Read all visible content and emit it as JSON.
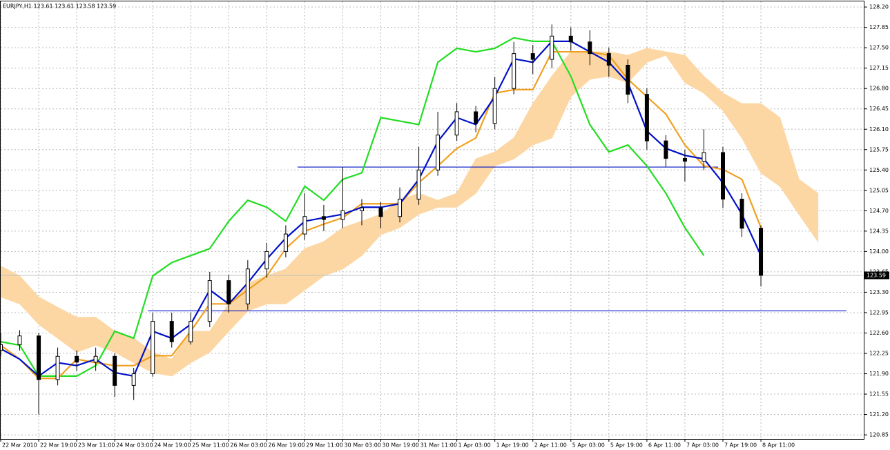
{
  "chart_data": {
    "type": "candlestick",
    "title": "EURJPY,H1  123.61 123.61 123.58 123.59",
    "x": [
      0,
      8,
      16,
      24,
      32,
      40,
      48,
      56,
      64,
      72,
      80,
      88,
      96,
      104,
      112,
      120,
      128,
      136,
      144,
      152,
      160,
      168,
      176,
      184,
      192,
      200,
      208,
      216,
      224,
      232,
      240,
      248,
      256,
      264,
      272,
      280,
      288,
      296,
      304,
      312,
      320,
      328,
      336,
      344,
      352,
      360
    ],
    "xlim": [
      0,
      363
    ],
    "xticks": [
      {
        "value": 0,
        "label": "22 Mar 2010"
      },
      {
        "value": 16,
        "label": "22 Mar 19:00"
      },
      {
        "value": 32,
        "label": "23 Mar 11:00"
      },
      {
        "value": 48,
        "label": "24 Mar 03:00"
      },
      {
        "value": 64,
        "label": "24 Mar 19:00"
      },
      {
        "value": 80,
        "label": "25 Mar 11:00"
      },
      {
        "value": 96,
        "label": "26 Mar 03:00"
      },
      {
        "value": 112,
        "label": "26 Mar 19:00"
      },
      {
        "value": 128,
        "label": "29 Mar 11:00"
      },
      {
        "value": 144,
        "label": "30 Mar 03:00"
      },
      {
        "value": 160,
        "label": "30 Mar 19:00"
      },
      {
        "value": 176,
        "label": "31 Mar 11:00"
      },
      {
        "value": 192,
        "label": "1 Apr 03:00"
      },
      {
        "value": 208,
        "label": "1 Apr 19:00"
      },
      {
        "value": 224,
        "label": "2 Apr 11:00"
      },
      {
        "value": 240,
        "label": "5 Apr 03:00"
      },
      {
        "value": 256,
        "label": "5 Apr 19:00"
      },
      {
        "value": 272,
        "label": "6 Apr 11:00"
      },
      {
        "value": 288,
        "label": "7 Apr 03:00"
      },
      {
        "value": 304,
        "label": "7 Apr 19:00"
      },
      {
        "value": 320,
        "label": "8 Apr 11:00"
      }
    ],
    "ylim": [
      120.78,
      128.32
    ],
    "yticks": [
      {
        "value": 128.2,
        "label": "128.20"
      },
      127.85,
      {
        "value": 127.5,
        "label": "127.50"
      },
      127.15,
      {
        "value": 126.8,
        "label": "126.80"
      },
      126.45,
      {
        "value": 126.1,
        "label": "126.10"
      },
      125.75,
      {
        "value": 125.4,
        "label": "125.40"
      },
      125.05,
      {
        "value": 124.7,
        "label": "124.70"
      },
      124.35,
      {
        "value": 124,
        "label": "124.00"
      },
      123.65,
      {
        "value": 123.3,
        "label": "123.30"
      },
      122.95,
      {
        "value": 122.6,
        "label": "122.60"
      },
      122.25,
      {
        "value": 121.9,
        "label": "121.90"
      },
      121.55,
      {
        "value": 121.2,
        "label": "121.20"
      },
      120.85
    ],
    "grid": true,
    "candle_color": "#000000",
    "candles": {
      "open": [
        122.3,
        122.4,
        122.55,
        121.8,
        122.2,
        122.1,
        122.2,
        121.7,
        121.9,
        122.8,
        122.45,
        122.8,
        123.5,
        123.1,
        123.7,
        124.0,
        124.3,
        124.6,
        124.55,
        124.7,
        124.75,
        124.6,
        124.9,
        125.4,
        126.0,
        126.4,
        126.2,
        126.8,
        127.4,
        127.3,
        127.7,
        127.6,
        127.4,
        127.2,
        126.7,
        125.9,
        125.6,
        125.55,
        125.7,
        124.9,
        124.4,
        null,
        null,
        null,
        null,
        null
      ],
      "high": [
        122.6,
        122.65,
        122.6,
        122.35,
        122.3,
        122.35,
        122.25,
        122.0,
        122.95,
        122.95,
        122.95,
        123.65,
        123.6,
        123.85,
        124.15,
        124.45,
        125.0,
        124.8,
        125.45,
        124.9,
        124.85,
        125.1,
        125.8,
        126.4,
        126.55,
        126.5,
        127.0,
        127.6,
        127.55,
        127.9,
        127.85,
        127.8,
        127.5,
        127.3,
        126.8,
        126.0,
        125.75,
        126.1,
        125.8,
        125.0,
        124.45,
        null,
        null,
        null,
        null,
        null
      ],
      "low": [
        122.2,
        122.3,
        121.2,
        121.7,
        121.95,
        121.95,
        121.5,
        121.45,
        121.85,
        122.35,
        122.4,
        122.7,
        122.95,
        123.0,
        123.55,
        123.9,
        124.2,
        124.35,
        124.4,
        124.45,
        124.4,
        124.5,
        124.8,
        125.3,
        125.9,
        126.05,
        126.1,
        126.7,
        127.05,
        127.15,
        127.45,
        127.2,
        127.0,
        126.55,
        125.75,
        125.45,
        125.2,
        125.4,
        124.75,
        124.25,
        123.4,
        null,
        null,
        null,
        null,
        null
      ],
      "close": [
        122.4,
        122.55,
        121.8,
        122.2,
        122.1,
        122.2,
        121.7,
        121.9,
        122.8,
        122.45,
        122.8,
        123.5,
        123.1,
        123.7,
        124.0,
        124.3,
        124.6,
        124.55,
        124.7,
        124.75,
        124.6,
        124.9,
        125.4,
        126.0,
        126.4,
        126.2,
        126.8,
        127.4,
        127.3,
        127.7,
        127.6,
        127.4,
        127.2,
        126.7,
        125.9,
        125.6,
        125.55,
        125.7,
        124.9,
        124.4,
        123.59,
        null,
        null,
        null,
        null,
        null
      ]
    },
    "cloud": {
      "color": "#fcd7a4",
      "upper": [
        123.75,
        123.58,
        123.22,
        123.04,
        122.87,
        122.87,
        122.63,
        122.51,
        122.27,
        122.15,
        122.63,
        122.63,
        123.1,
        123.46,
        123.58,
        123.7,
        124.05,
        124.17,
        124.41,
        124.52,
        124.64,
        124.88,
        125.0,
        124.88,
        125.0,
        125.59,
        125.71,
        125.95,
        126.54,
        127.01,
        127.43,
        127.43,
        127.43,
        127.37,
        127.49,
        127.43,
        127.37,
        127.01,
        126.72,
        126.54,
        126.54,
        126.3,
        125.24,
        125.0,
        null,
        null
      ],
      "lower": [
        123.22,
        123.1,
        122.75,
        122.51,
        122.27,
        122.39,
        122.27,
        122.09,
        121.92,
        121.86,
        122.09,
        122.27,
        122.63,
        122.98,
        123.1,
        123.1,
        123.34,
        123.58,
        123.7,
        123.93,
        124.29,
        124.41,
        124.64,
        124.76,
        124.76,
        125.0,
        125.47,
        125.59,
        125.83,
        125.95,
        126.66,
        126.96,
        127.01,
        126.9,
        127.25,
        127.37,
        126.9,
        126.72,
        126.42,
        125.95,
        125.35,
        125.12,
        124.64,
        124.17,
        null,
        null
      ]
    },
    "series": [
      {
        "color": "#22dd22",
        "values": [
          122.45,
          122.39,
          121.86,
          121.86,
          121.86,
          122.04,
          122.63,
          122.51,
          123.58,
          123.81,
          123.93,
          124.05,
          124.52,
          124.88,
          124.76,
          124.52,
          125.12,
          124.88,
          125.24,
          125.35,
          126.3,
          126.24,
          126.18,
          127.25,
          127.49,
          127.43,
          127.49,
          127.67,
          127.61,
          127.61,
          127.01,
          126.18,
          125.71,
          125.83,
          125.47,
          125.0,
          124.41,
          123.93,
          null,
          null,
          null,
          null,
          null,
          null,
          null,
          null
        ]
      },
      {
        "color": "#f0a020",
        "values": [
          122.39,
          122.15,
          121.82,
          121.82,
          122.15,
          122.09,
          122.04,
          122.04,
          122.21,
          122.21,
          122.63,
          123.1,
          123.1,
          123.34,
          123.58,
          124.05,
          124.35,
          124.47,
          124.58,
          124.82,
          124.82,
          124.82,
          125.18,
          125.47,
          125.77,
          125.95,
          126.72,
          126.78,
          126.78,
          127.43,
          127.43,
          127.43,
          127.37,
          126.96,
          126.66,
          126.36,
          125.83,
          125.47,
          125.41,
          125.24,
          124.41,
          null,
          null,
          null,
          null,
          null
        ]
      },
      {
        "color": "#0010c8",
        "values": [
          122.33,
          122.15,
          121.86,
          122.09,
          122.04,
          122.15,
          121.92,
          121.86,
          122.63,
          122.51,
          122.75,
          123.34,
          123.1,
          123.46,
          123.87,
          124.23,
          124.52,
          124.58,
          124.64,
          124.76,
          124.76,
          124.82,
          125.24,
          125.89,
          126.3,
          126.18,
          126.66,
          127.31,
          127.25,
          127.61,
          127.61,
          127.43,
          127.25,
          126.9,
          126.07,
          125.77,
          125.65,
          125.59,
          125.18,
          124.64,
          123.93,
          null,
          null,
          null,
          null,
          null
        ]
      }
    ],
    "hlines": [
      {
        "value": 125.45,
        "from": 125,
        "to": 302,
        "color": "#0010c8"
      },
      {
        "value": 122.98,
        "from": 62,
        "to": 356,
        "color": "#0010c8"
      }
    ],
    "last_price": 123.59
  }
}
